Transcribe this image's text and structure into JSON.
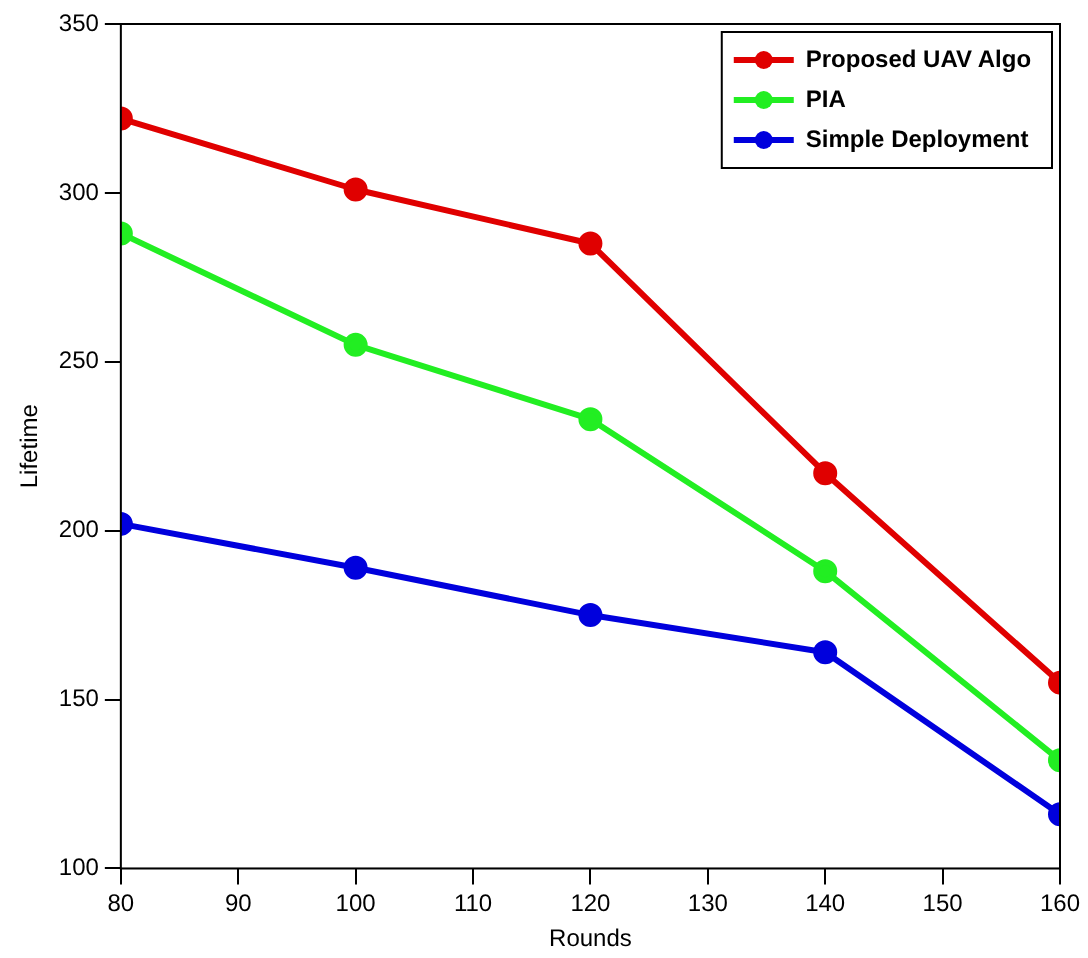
{
  "chart_data": {
    "type": "line",
    "xlabel": "Rounds",
    "ylabel": "Lifetime",
    "x": [
      80,
      100,
      120,
      140,
      160
    ],
    "series": [
      {
        "name": "Proposed UAV Algo",
        "color": "#e00000",
        "values": [
          322,
          301,
          285,
          217,
          155
        ]
      },
      {
        "name": "PIA",
        "color": "#22ee22",
        "values": [
          288,
          255,
          233,
          188,
          132
        ]
      },
      {
        "name": "Simple Deployment",
        "color": "#0000dd",
        "values": [
          202,
          189,
          175,
          164,
          116
        ]
      }
    ],
    "xlim": [
      80,
      160
    ],
    "xticks": [
      80,
      90,
      100,
      110,
      120,
      130,
      140,
      150,
      160
    ],
    "ylim": [
      100,
      350
    ],
    "yticks": [
      100,
      150,
      200,
      250,
      300,
      350
    ],
    "grid": false,
    "legend": "top right",
    "marker": "circle",
    "line_style": "solid"
  }
}
